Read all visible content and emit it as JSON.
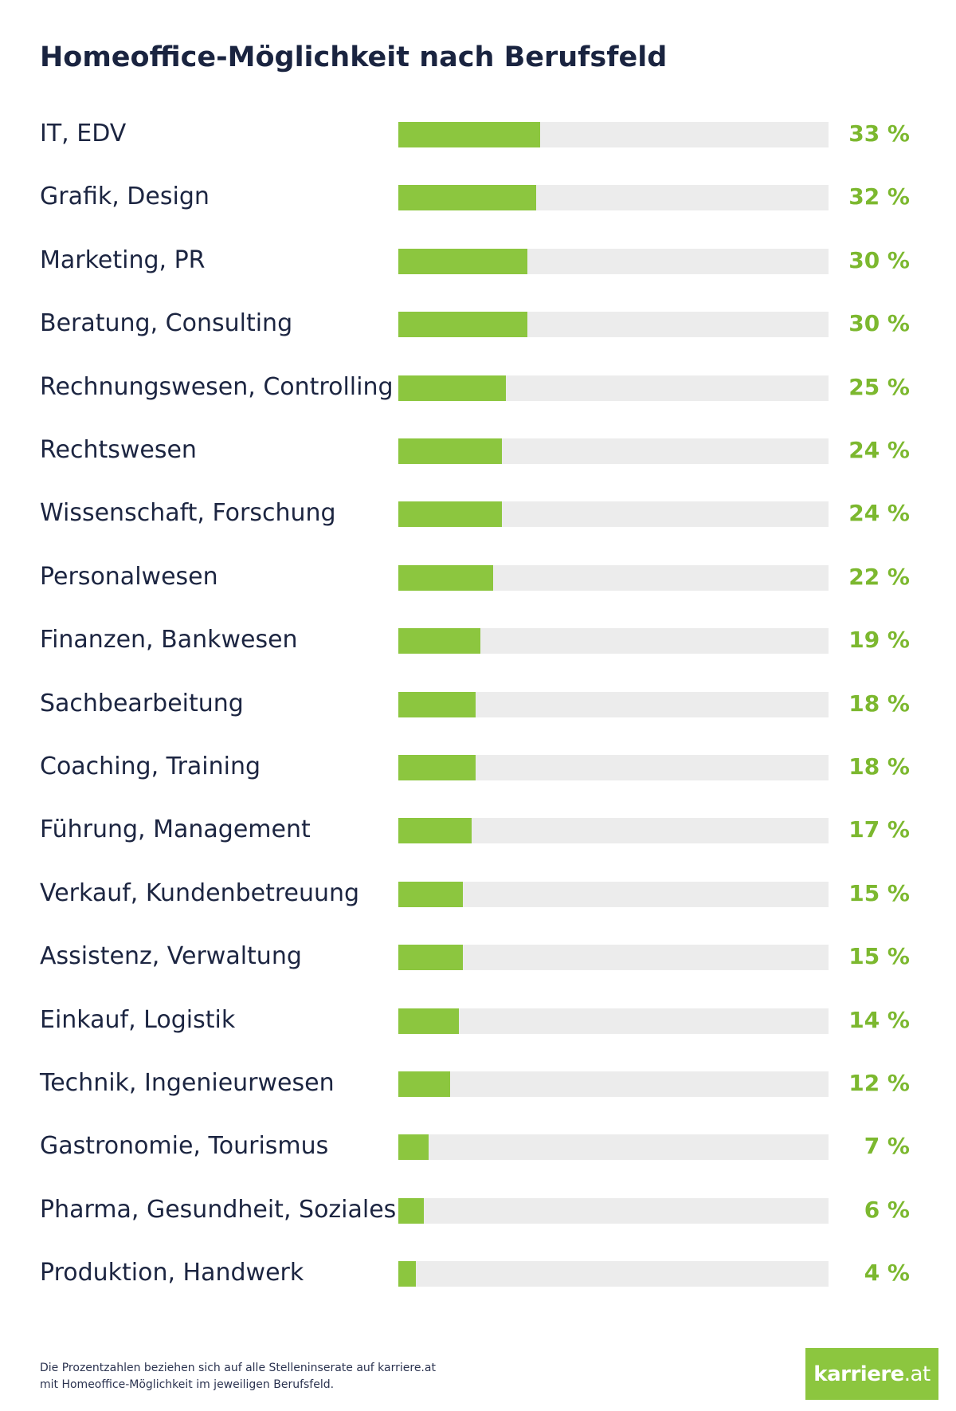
{
  "colors": {
    "bar": "#8cc63f",
    "track": "#ececec",
    "value_text": "#7cb82f",
    "label_text": "#1c2541",
    "logo_bg": "#8cc63f"
  },
  "chart_data": {
    "type": "bar",
    "orientation": "horizontal",
    "title": "Homeoffice-Möglichkeit nach Berufsfeld",
    "categories": [
      "IT, EDV",
      "Grafik, Design",
      "Marketing, PR",
      "Beratung, Consulting",
      "Rechnungswesen, Controlling",
      "Rechtswesen",
      "Wissenschaft, Forschung",
      "Personalwesen",
      "Finanzen, Bankwesen",
      "Sachbearbeitung",
      "Coaching, Training",
      "Führung, Management",
      "Verkauf, Kundenbetreuung",
      "Assistenz, Verwaltung",
      "Einkauf, Logistik",
      "Technik, Ingenieurwesen",
      "Gastronomie, Tourismus",
      "Pharma, Gesundheit, Soziales",
      "Produktion, Handwerk"
    ],
    "values": [
      33,
      32,
      30,
      30,
      25,
      24,
      24,
      22,
      19,
      18,
      18,
      17,
      15,
      15,
      14,
      12,
      7,
      6,
      4
    ],
    "value_labels": [
      "33 %",
      "32 %",
      "30 %",
      "30 %",
      "25 %",
      "24 %",
      "24 %",
      "22 %",
      "19 %",
      "18 %",
      "18 %",
      "17 %",
      "15 %",
      "15 %",
      "14 %",
      "12 %",
      "7 %",
      "6 %",
      "4 %"
    ],
    "xlim": [
      0,
      100
    ],
    "unit": "%",
    "grid": false,
    "legend": "none"
  },
  "footnote": {
    "line1": "Die Prozentzahlen beziehen sich auf alle Stelleninserate auf karriere.at",
    "line2": "mit Homeoffice-Möglichkeit im jeweiligen Berufsfeld."
  },
  "logo": {
    "main": "karriere",
    "tld": ".at"
  }
}
